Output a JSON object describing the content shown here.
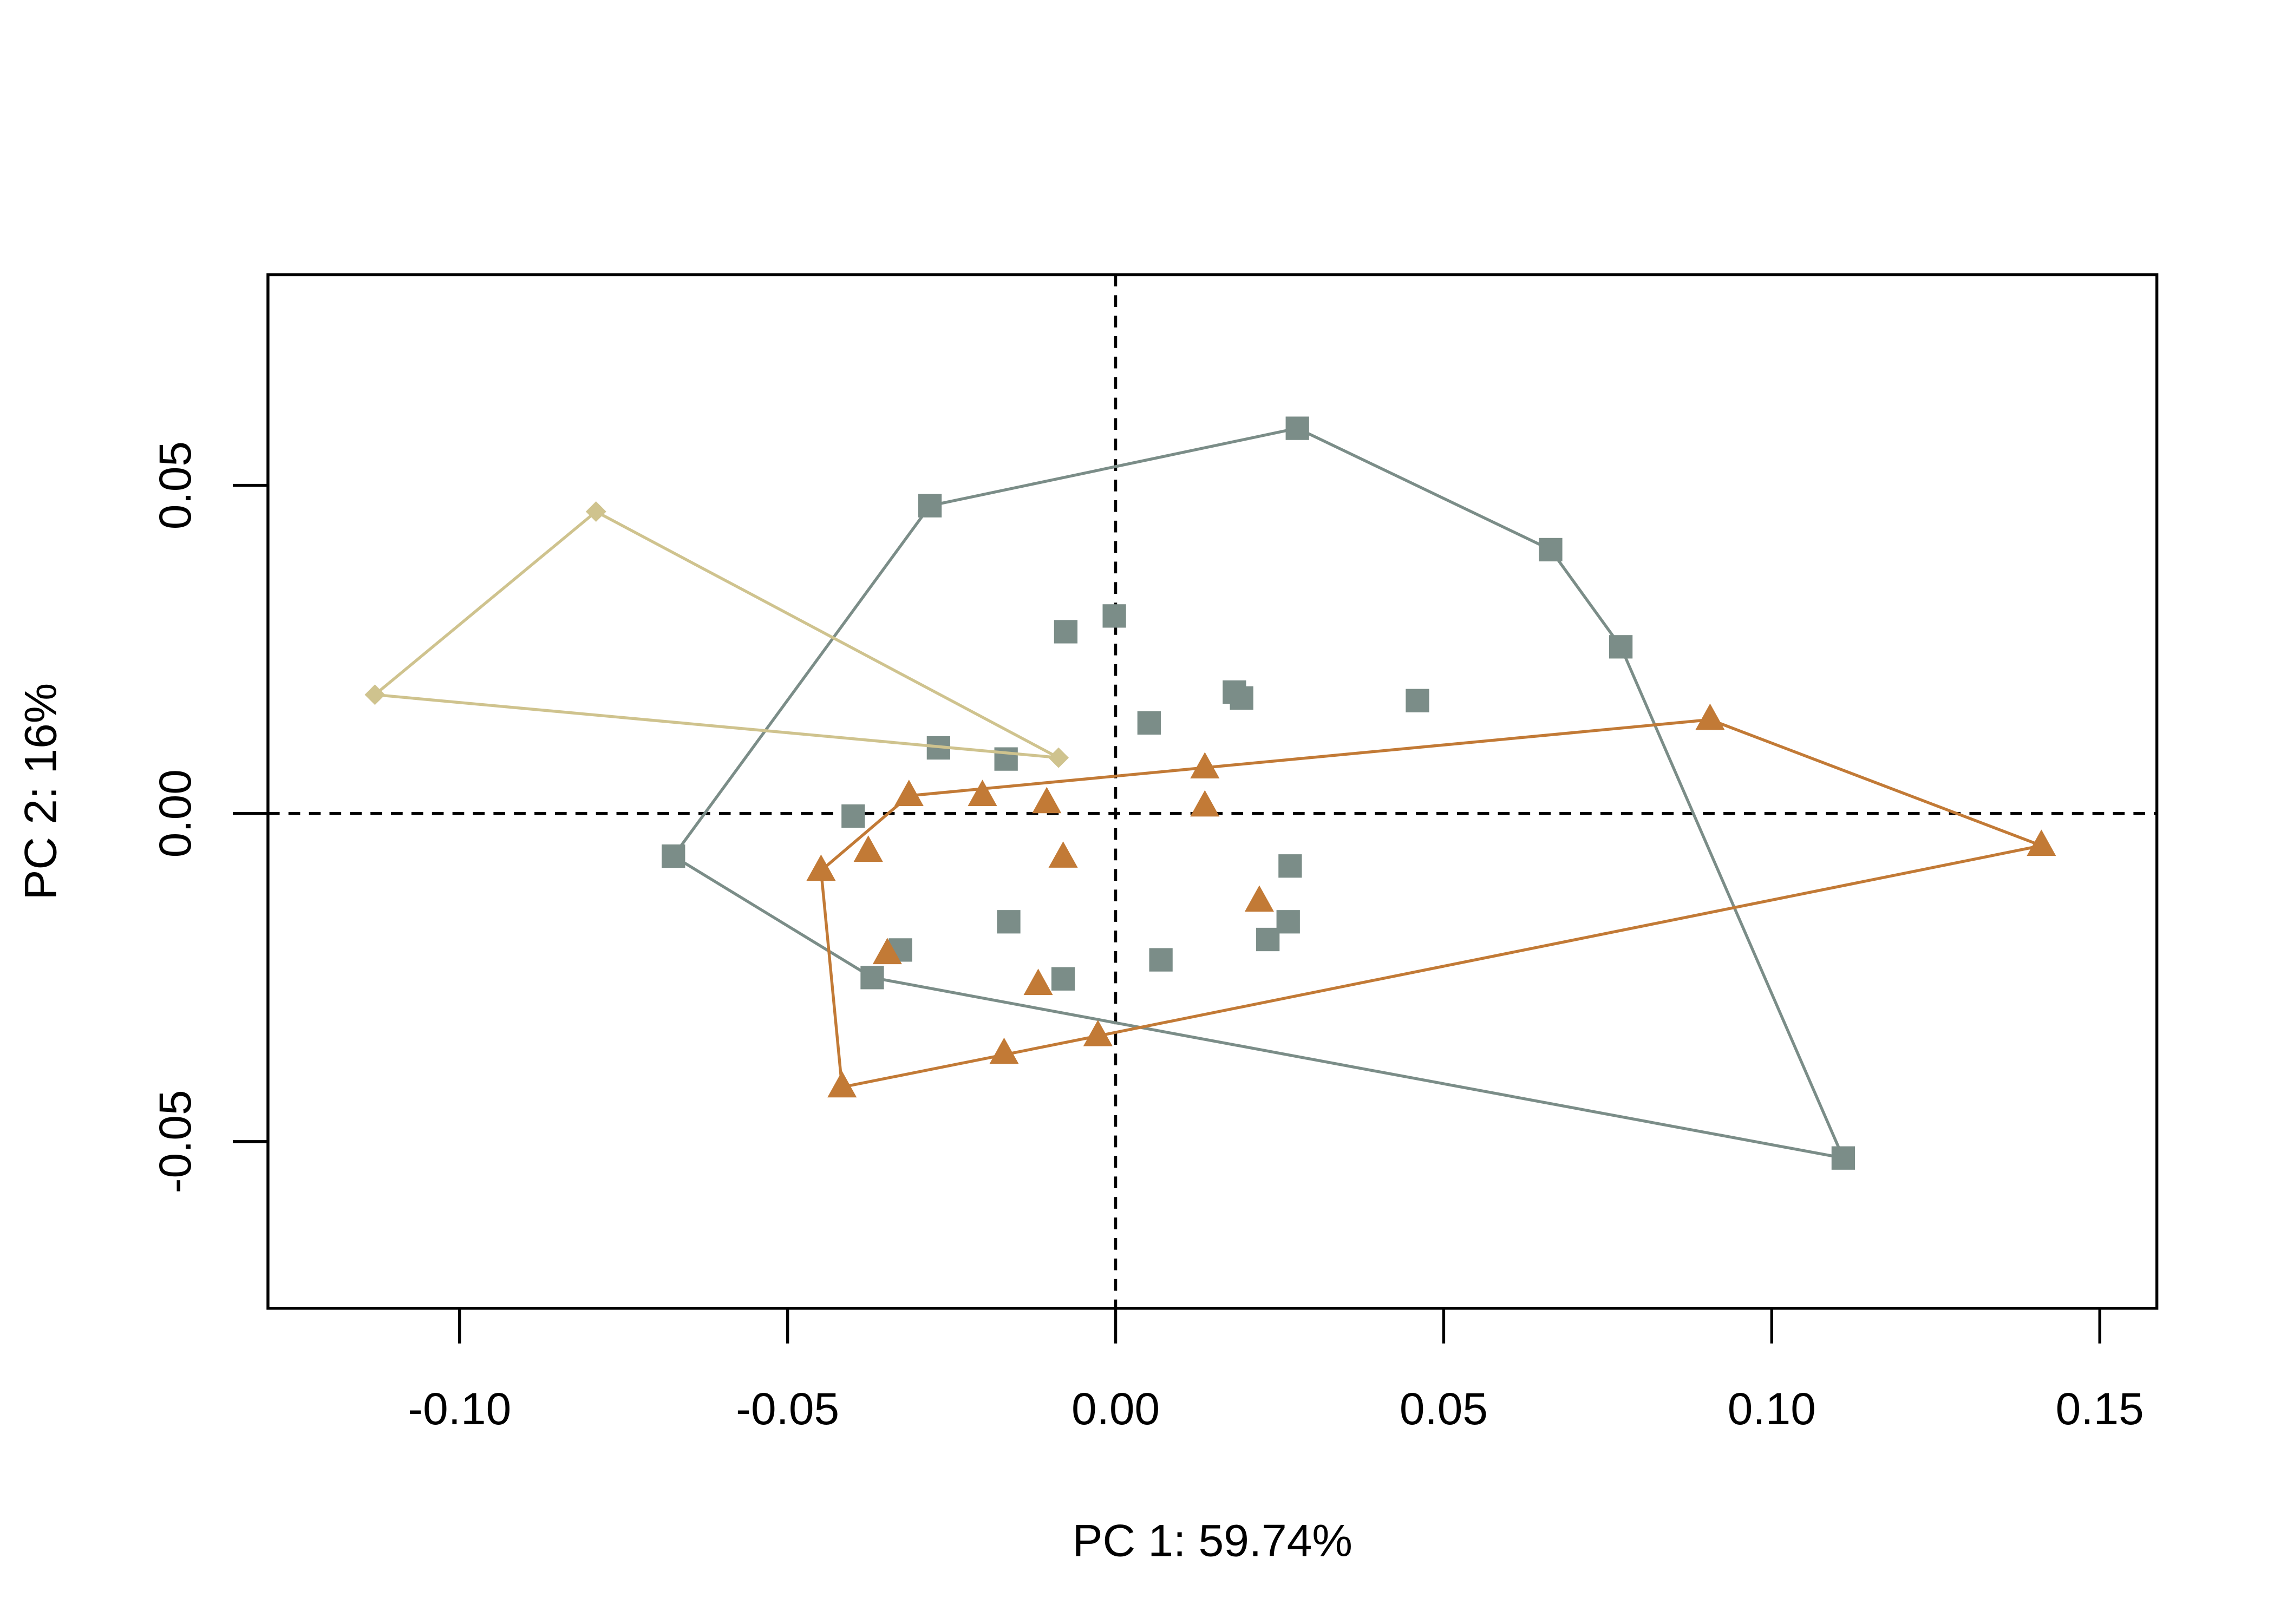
{
  "chart_data": {
    "type": "scatter",
    "xlabel": "PC 1: 59.74%",
    "ylabel": "PC 2: 16%",
    "xlim": [
      -0.1292,
      0.1587
    ],
    "ylim": [
      -0.0754,
      0.0821
    ],
    "xticks": [
      {
        "value": -0.1,
        "label": "-0.10"
      },
      {
        "value": -0.05,
        "label": "-0.05"
      },
      {
        "value": 0,
        "label": "0.00"
      },
      {
        "value": 0.05,
        "label": "0.05"
      },
      {
        "value": 0.1,
        "label": "0.10"
      },
      {
        "value": 0.15,
        "label": "0.15"
      }
    ],
    "yticks": [
      {
        "value": -0.05,
        "label": "-0.05"
      },
      {
        "value": 0,
        "label": "0.00"
      },
      0.05
    ],
    "zero_lines": true,
    "hulls": true,
    "series": [
      {
        "color": "#7b8d88",
        "marker": "square",
        "x": [
          0.0277,
          -0.0283,
          0.0663,
          0.077,
          -0.0674,
          -0.0371,
          0.1109,
          -0.0076,
          -0.0002,
          0.0181,
          0.0192,
          0.046,
          0.0051,
          -0.027,
          -0.0167,
          -0.04,
          0.0266,
          0.0263,
          0.0232,
          -0.0163,
          -0.0328,
          -0.008,
          0.0069
        ],
        "values": [
          0.0587,
          0.0469,
          0.0402,
          0.0254,
          -0.0065,
          -0.025,
          -0.0525,
          0.0277,
          0.0301,
          0.0185,
          0.0176,
          0.0172,
          0.0138,
          0.01,
          0.0083,
          -0.0004,
          -0.008,
          -0.0165,
          -0.0192,
          -0.0165,
          -0.0208,
          -0.0252,
          -0.0223
        ]
      },
      {
        "color": "#c27a36",
        "marker": "triangle",
        "x": [
          0.0906,
          0.1411,
          -0.0417,
          -0.0449,
          -0.0315,
          0.0136,
          0.0136,
          -0.0203,
          -0.0105,
          -0.0377,
          -0.008,
          0.0219,
          -0.0348,
          -0.0118,
          -0.017,
          -0.0027
        ],
        "values": [
          0.0143,
          -0.0049,
          -0.0417,
          -0.0087,
          0.0027,
          0.0069,
          0.0011,
          0.0027,
          0.0016,
          -0.0058,
          -0.0067,
          -0.0134,
          -0.0214,
          -0.0261,
          -0.0366,
          -0.0339
        ]
      },
      {
        "color": "#cfc38e",
        "marker": "diamond",
        "x": [
          -0.0792,
          -0.1129,
          -0.0087
        ],
        "values": [
          0.046,
          0.0181,
          0.0085
        ]
      }
    ]
  }
}
